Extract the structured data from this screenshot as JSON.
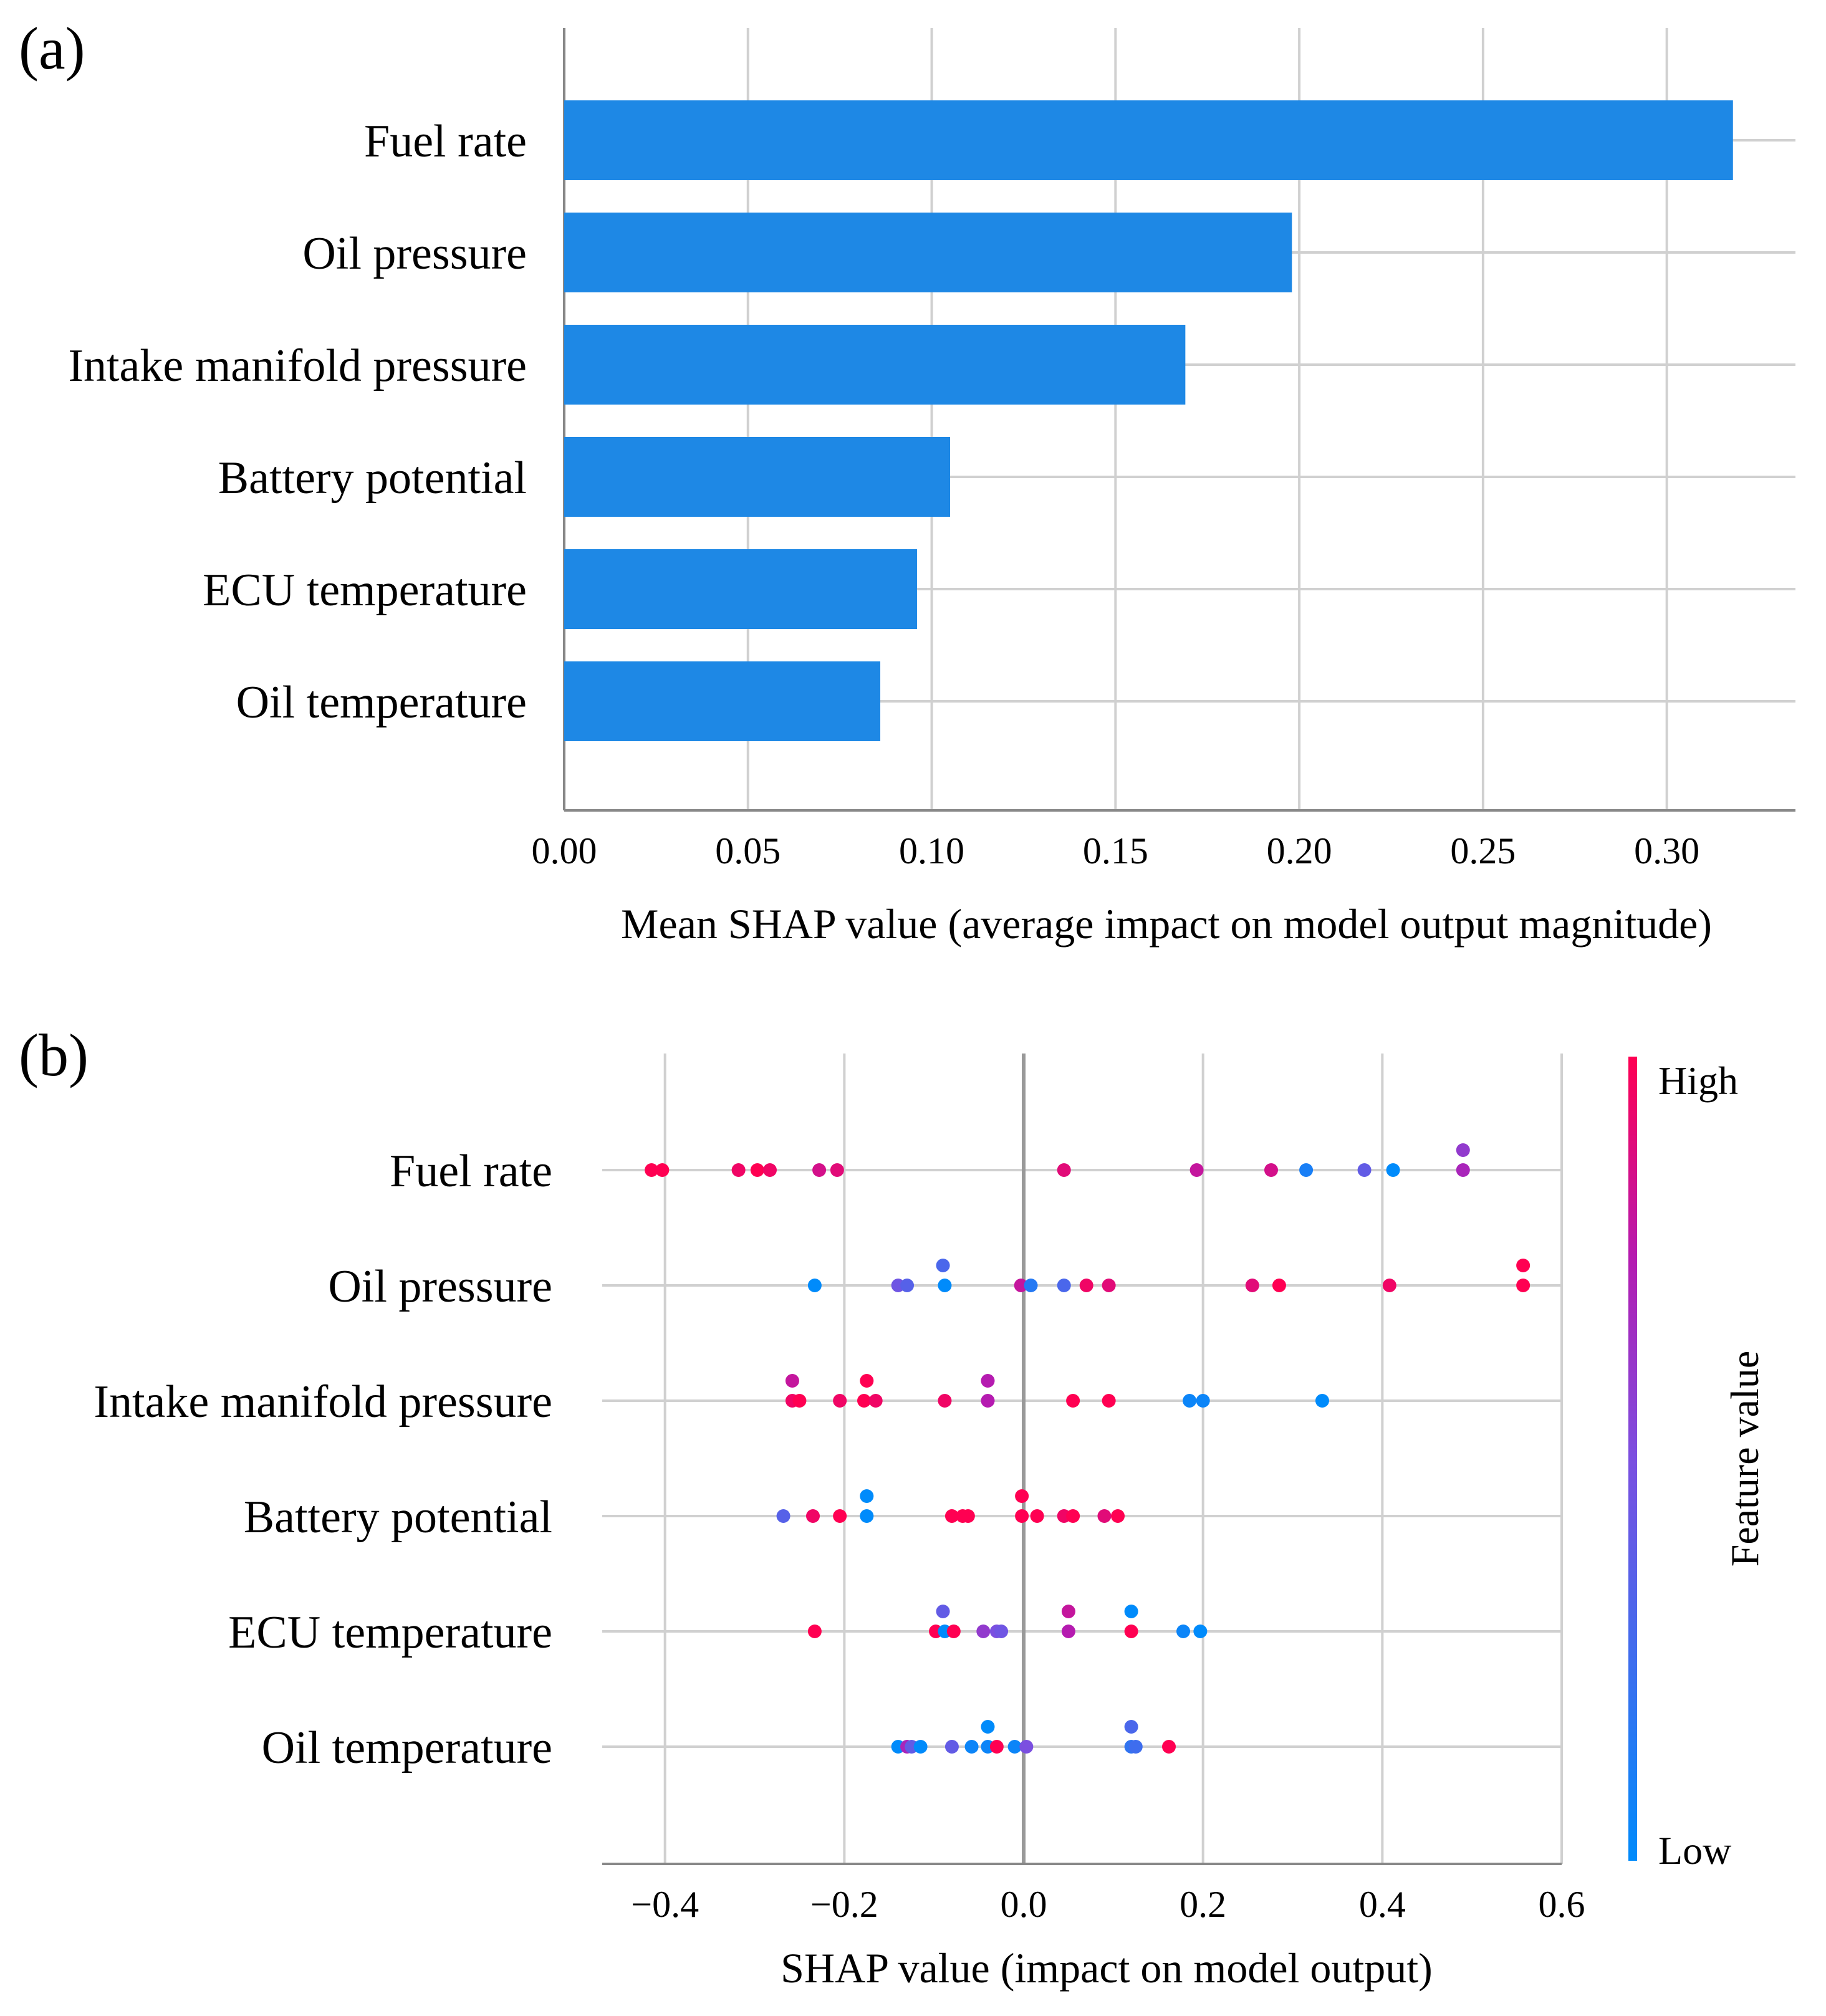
{
  "chart_data": [
    {
      "panel_label": "(a)",
      "type": "bar",
      "orientation": "horizontal",
      "categories": [
        "Fuel rate",
        "Oil pressure",
        "Intake manifold pressure",
        "Battery potential",
        "ECU temperature",
        "Oil temperature"
      ],
      "values": [
        0.318,
        0.198,
        0.169,
        0.105,
        0.096,
        0.086
      ],
      "xlabel": "Mean SHAP value (average impact on model output magnitude)",
      "xlim": [
        0,
        0.335
      ],
      "xticks": [
        "0.00",
        "0.05",
        "0.10",
        "0.15",
        "0.20",
        "0.25",
        "0.30"
      ],
      "xtick_values": [
        0,
        0.05,
        0.1,
        0.15,
        0.2,
        0.25,
        0.3
      ],
      "grid": true,
      "bar_color": "#1E88E5"
    },
    {
      "panel_label": "(b)",
      "type": "scatter",
      "subtype": "shap-beeswarm",
      "xlabel": "SHAP value (impact on model output)",
      "xlim": [
        -0.47,
        0.6
      ],
      "xticks": [
        "−0.4",
        "−0.2",
        "0.0",
        "0.2",
        "0.4",
        "0.6"
      ],
      "xtick_values": [
        -0.4,
        -0.2,
        0,
        0.2,
        0.4,
        0.6
      ],
      "grid": true,
      "colorbar": {
        "label": "Feature value",
        "high": "High",
        "low": "Low",
        "high_color": "#FF0052",
        "low_color": "#008BFB"
      },
      "series": [
        {
          "name": "Fuel rate",
          "points": [
            {
              "x": -0.415,
              "lane": 0,
              "f": 1.0
            },
            {
              "x": -0.403,
              "lane": 0,
              "f": 1.0
            },
            {
              "x": -0.318,
              "lane": 0,
              "f": 0.95
            },
            {
              "x": -0.297,
              "lane": 0,
              "f": 1.0
            },
            {
              "x": -0.283,
              "lane": 0,
              "f": 0.95
            },
            {
              "x": -0.228,
              "lane": 0,
              "f": 0.85
            },
            {
              "x": -0.208,
              "lane": 0,
              "f": 0.9
            },
            {
              "x": 0.045,
              "lane": 0,
              "f": 0.9
            },
            {
              "x": 0.193,
              "lane": 0,
              "f": 0.8
            },
            {
              "x": 0.276,
              "lane": 0,
              "f": 0.85
            },
            {
              "x": 0.315,
              "lane": 0,
              "f": 0.1
            },
            {
              "x": 0.38,
              "lane": 0,
              "f": 0.4
            },
            {
              "x": 0.412,
              "lane": 0,
              "f": 0.0
            },
            {
              "x": 0.49,
              "lane": 0,
              "f": 0.7
            },
            {
              "x": 0.49,
              "lane": 1,
              "f": 0.6
            }
          ]
        },
        {
          "name": "Oil pressure",
          "points": [
            {
              "x": -0.233,
              "lane": 0,
              "f": 0.0
            },
            {
              "x": -0.14,
              "lane": 0,
              "f": 0.45
            },
            {
              "x": -0.13,
              "lane": 0,
              "f": 0.35
            },
            {
              "x": -0.09,
              "lane": 1,
              "f": 0.3
            },
            {
              "x": -0.088,
              "lane": 0,
              "f": 0.0
            },
            {
              "x": -0.003,
              "lane": 0,
              "f": 0.8
            },
            {
              "x": 0.008,
              "lane": 0,
              "f": 0.15
            },
            {
              "x": 0.045,
              "lane": 0,
              "f": 0.3
            },
            {
              "x": 0.07,
              "lane": 0,
              "f": 0.95
            },
            {
              "x": 0.095,
              "lane": 0,
              "f": 0.9
            },
            {
              "x": 0.255,
              "lane": 0,
              "f": 0.9
            },
            {
              "x": 0.285,
              "lane": 0,
              "f": 1.0
            },
            {
              "x": 0.408,
              "lane": 0,
              "f": 0.95
            },
            {
              "x": 0.557,
              "lane": 0,
              "f": 1.0
            },
            {
              "x": 0.557,
              "lane": 1,
              "f": 1.0
            }
          ]
        },
        {
          "name": "Intake manifold pressure",
          "points": [
            {
              "x": -0.258,
              "lane": 1,
              "f": 0.8
            },
            {
              "x": -0.258,
              "lane": 0,
              "f": 0.95
            },
            {
              "x": -0.25,
              "lane": 0,
              "f": 1.0
            },
            {
              "x": -0.205,
              "lane": 0,
              "f": 0.95
            },
            {
              "x": -0.175,
              "lane": 1,
              "f": 1.0
            },
            {
              "x": -0.178,
              "lane": 0,
              "f": 1.0
            },
            {
              "x": -0.165,
              "lane": 0,
              "f": 0.95
            },
            {
              "x": -0.088,
              "lane": 0,
              "f": 0.95
            },
            {
              "x": -0.04,
              "lane": 1,
              "f": 0.75
            },
            {
              "x": -0.04,
              "lane": 0,
              "f": 0.75
            },
            {
              "x": 0.055,
              "lane": 0,
              "f": 1.0
            },
            {
              "x": 0.095,
              "lane": 0,
              "f": 1.0
            },
            {
              "x": 0.185,
              "lane": 0,
              "f": 0.05
            },
            {
              "x": 0.2,
              "lane": 0,
              "f": 0.05
            },
            {
              "x": 0.333,
              "lane": 0,
              "f": 0.0
            }
          ]
        },
        {
          "name": "Battery potential",
          "points": [
            {
              "x": -0.268,
              "lane": 0,
              "f": 0.35
            },
            {
              "x": -0.235,
              "lane": 0,
              "f": 0.95
            },
            {
              "x": -0.205,
              "lane": 0,
              "f": 1.0
            },
            {
              "x": -0.175,
              "lane": 1,
              "f": 0.0
            },
            {
              "x": -0.175,
              "lane": 0,
              "f": 0.0
            },
            {
              "x": -0.08,
              "lane": 0,
              "f": 1.0
            },
            {
              "x": -0.068,
              "lane": 0,
              "f": 1.0
            },
            {
              "x": -0.062,
              "lane": 0,
              "f": 1.0
            },
            {
              "x": -0.002,
              "lane": 1,
              "f": 1.0
            },
            {
              "x": -0.002,
              "lane": 0,
              "f": 1.0
            },
            {
              "x": 0.015,
              "lane": 0,
              "f": 1.0
            },
            {
              "x": 0.045,
              "lane": 0,
              "f": 0.95
            },
            {
              "x": 0.055,
              "lane": 0,
              "f": 1.0
            },
            {
              "x": 0.09,
              "lane": 0,
              "f": 0.9
            },
            {
              "x": 0.105,
              "lane": 0,
              "f": 1.0
            }
          ]
        },
        {
          "name": "ECU temperature",
          "points": [
            {
              "x": -0.233,
              "lane": 0,
              "f": 1.0
            },
            {
              "x": -0.098,
              "lane": 0,
              "f": 1.0
            },
            {
              "x": -0.09,
              "lane": 1,
              "f": 0.4
            },
            {
              "x": -0.088,
              "lane": 0,
              "f": 0.0
            },
            {
              "x": -0.078,
              "lane": 0,
              "f": 1.0
            },
            {
              "x": -0.045,
              "lane": 0,
              "f": 0.6
            },
            {
              "x": -0.03,
              "lane": 0,
              "f": 0.5
            },
            {
              "x": -0.025,
              "lane": 0,
              "f": 0.45
            },
            {
              "x": 0.05,
              "lane": 1,
              "f": 0.8
            },
            {
              "x": 0.05,
              "lane": 0,
              "f": 0.75
            },
            {
              "x": 0.12,
              "lane": 1,
              "f": 0.0
            },
            {
              "x": 0.12,
              "lane": 0,
              "f": 1.0
            },
            {
              "x": 0.178,
              "lane": 0,
              "f": 0.05
            },
            {
              "x": 0.197,
              "lane": 0,
              "f": 0.0
            }
          ]
        },
        {
          "name": "Oil temperature",
          "points": [
            {
              "x": -0.14,
              "lane": 0,
              "f": 0.0
            },
            {
              "x": -0.13,
              "lane": 0,
              "f": 0.7
            },
            {
              "x": -0.125,
              "lane": 0,
              "f": 0.4
            },
            {
              "x": -0.115,
              "lane": 0,
              "f": 0.0
            },
            {
              "x": -0.08,
              "lane": 0,
              "f": 0.4
            },
            {
              "x": -0.058,
              "lane": 0,
              "f": 0.05
            },
            {
              "x": -0.04,
              "lane": 1,
              "f": 0.0
            },
            {
              "x": -0.04,
              "lane": 0,
              "f": 0.05
            },
            {
              "x": -0.03,
              "lane": 0,
              "f": 1.0
            },
            {
              "x": -0.01,
              "lane": 0,
              "f": 0.05
            },
            {
              "x": 0.003,
              "lane": 0,
              "f": 0.5
            },
            {
              "x": 0.12,
              "lane": 1,
              "f": 0.3
            },
            {
              "x": 0.12,
              "lane": 0,
              "f": 0.2
            },
            {
              "x": 0.125,
              "lane": 0,
              "f": 0.25
            },
            {
              "x": 0.162,
              "lane": 0,
              "f": 1.0
            }
          ]
        }
      ]
    }
  ]
}
